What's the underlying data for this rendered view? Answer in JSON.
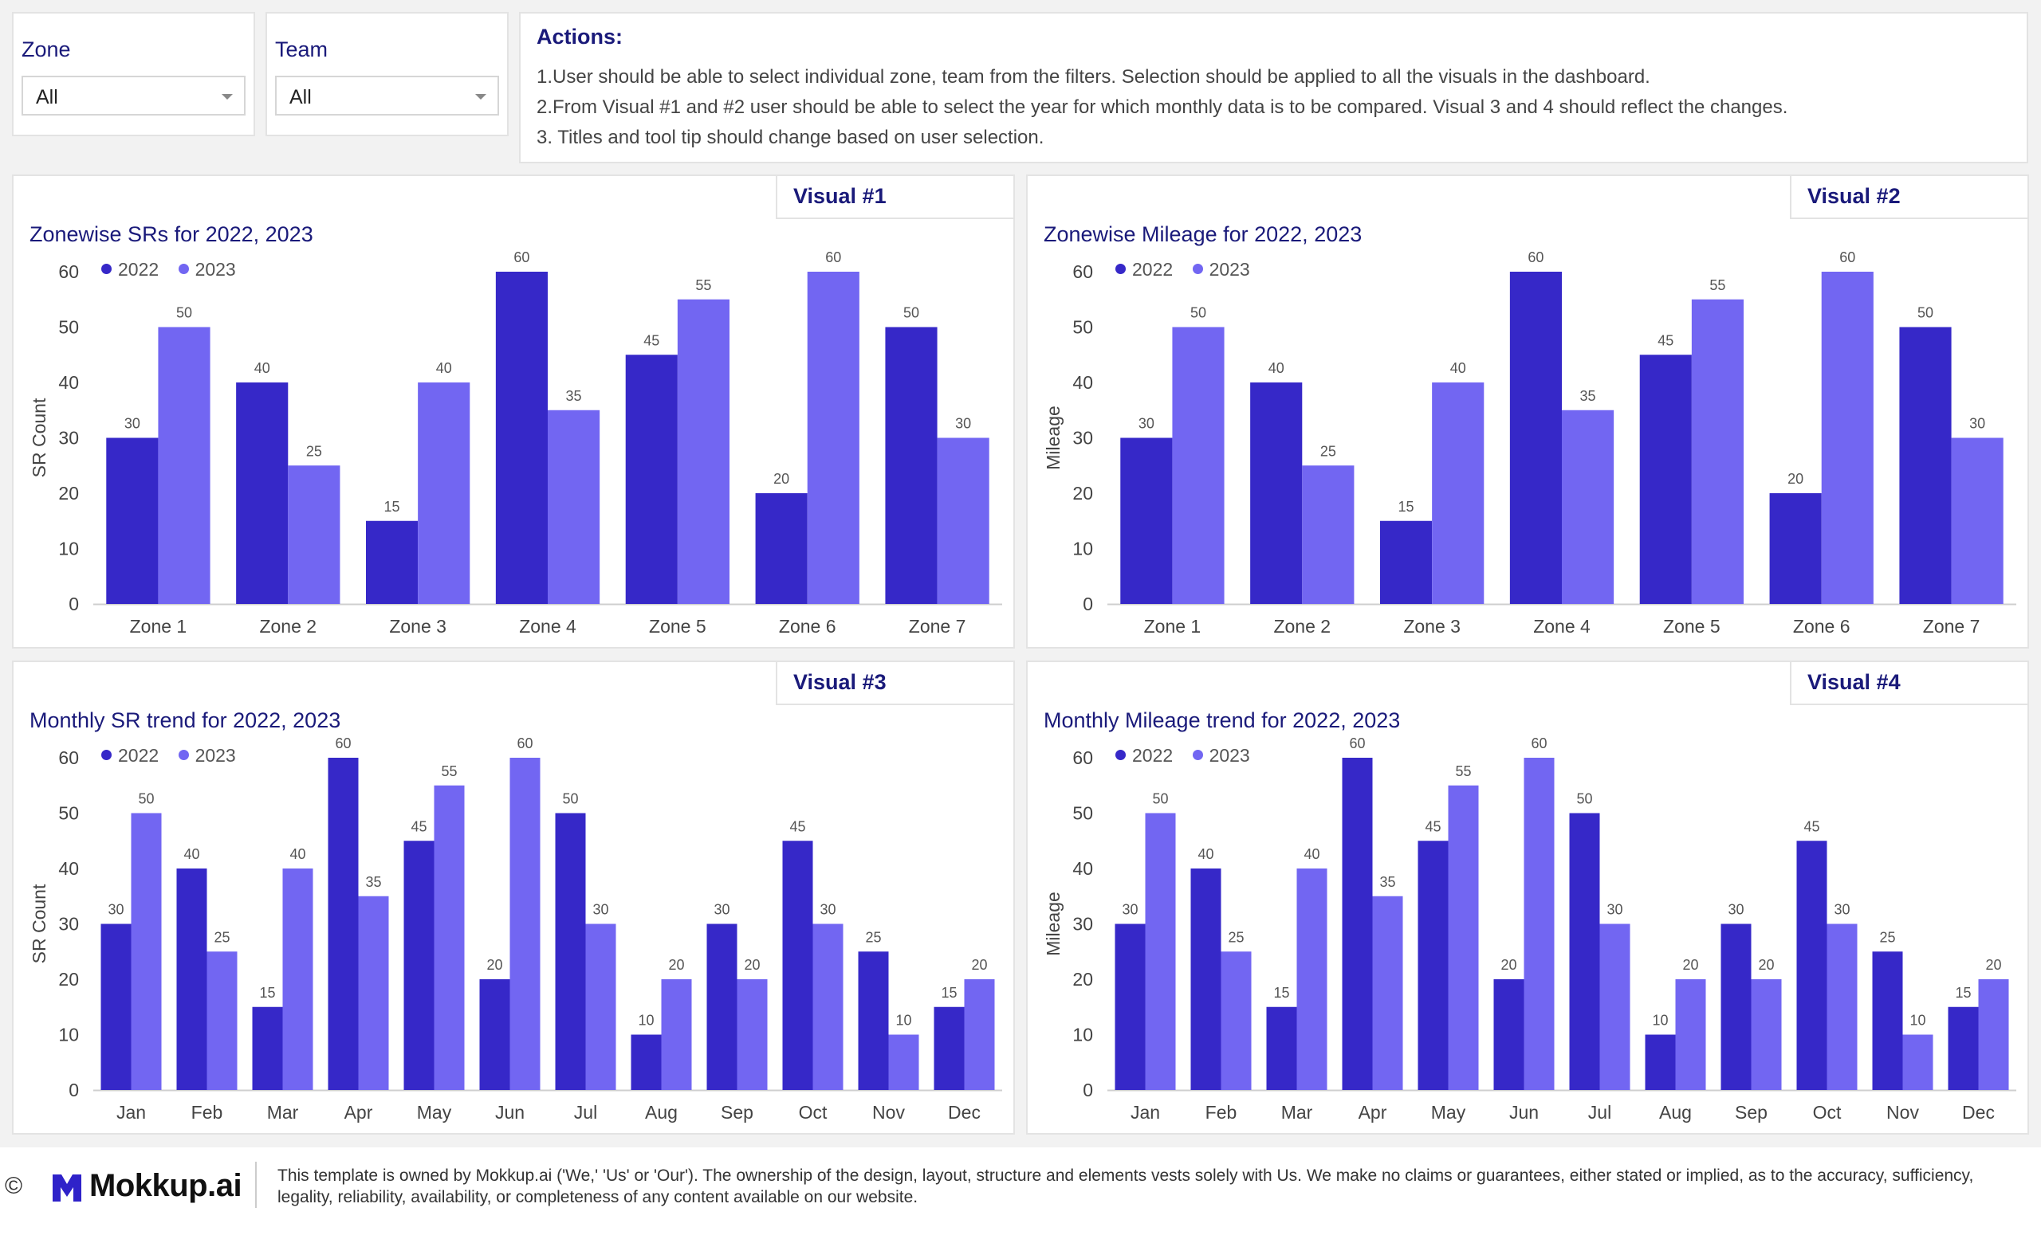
{
  "colors": {
    "y2022": "#3628c8",
    "y2023": "#7266f2",
    "title": "#1a1a7a"
  },
  "filters": [
    {
      "label": "Zone",
      "value": "All"
    },
    {
      "label": "Team",
      "value": "All"
    }
  ],
  "actions": {
    "title": "Actions:",
    "lines": [
      "1.User should be able to select individual zone, team from the filters. Selection should be applied to all the visuals in the dashboard.",
      "2.From Visual #1 and #2 user should be able to select the year for which monthly data is to be compared. Visual 3 and 4 should reflect the changes.",
      "3. Titles and tool tip should change based on user selection."
    ]
  },
  "charts": [
    {
      "tab": "Visual #1"
    },
    {
      "tab": "Visual #2"
    },
    {
      "tab": "Visual #3"
    },
    {
      "tab": "Visual #4"
    }
  ],
  "chart_data": [
    {
      "type": "bar",
      "title": "Zonewise SRs for 2022, 2023",
      "ylabel": "SR Count",
      "xlabel": "",
      "ylim": [
        0,
        60
      ],
      "yticks": [
        0,
        10,
        20,
        30,
        40,
        50,
        60
      ],
      "legend": "top-left",
      "grid": false,
      "categories": [
        "Zone 1",
        "Zone 2",
        "Zone 3",
        "Zone 4",
        "Zone 5",
        "Zone 6",
        "Zone 7"
      ],
      "series": [
        {
          "name": "2022",
          "values": [
            30,
            40,
            15,
            60,
            45,
            20,
            50
          ]
        },
        {
          "name": "2023",
          "values": [
            50,
            25,
            40,
            35,
            55,
            60,
            30
          ]
        }
      ]
    },
    {
      "type": "bar",
      "title": "Zonewise Mileage for 2022, 2023",
      "ylabel": "Mileage",
      "xlabel": "",
      "ylim": [
        0,
        60
      ],
      "yticks": [
        0,
        10,
        20,
        30,
        40,
        50,
        60
      ],
      "legend": "top-left",
      "grid": false,
      "categories": [
        "Zone 1",
        "Zone 2",
        "Zone 3",
        "Zone 4",
        "Zone 5",
        "Zone 6",
        "Zone 7"
      ],
      "series": [
        {
          "name": "2022",
          "values": [
            30,
            40,
            15,
            60,
            45,
            20,
            50
          ]
        },
        {
          "name": "2023",
          "values": [
            50,
            25,
            40,
            35,
            55,
            60,
            30
          ]
        }
      ]
    },
    {
      "type": "bar",
      "title": "Monthly SR trend for 2022, 2023",
      "ylabel": "SR Count",
      "xlabel": "",
      "ylim": [
        0,
        60
      ],
      "yticks": [
        0,
        10,
        20,
        30,
        40,
        50,
        60
      ],
      "legend": "top-left",
      "grid": false,
      "categories": [
        "Jan",
        "Feb",
        "Mar",
        "Apr",
        "May",
        "Jun",
        "Jul",
        "Aug",
        "Sep",
        "Oct",
        "Nov",
        "Dec"
      ],
      "series": [
        {
          "name": "2022",
          "values": [
            30,
            40,
            15,
            60,
            45,
            20,
            50,
            10,
            30,
            45,
            25,
            15
          ]
        },
        {
          "name": "2023",
          "values": [
            50,
            25,
            40,
            35,
            55,
            60,
            30,
            20,
            20,
            30,
            10,
            20
          ]
        }
      ]
    },
    {
      "type": "bar",
      "title": "Monthly Mileage trend for 2022, 2023",
      "ylabel": "Mileage",
      "xlabel": "",
      "ylim": [
        0,
        60
      ],
      "yticks": [
        0,
        10,
        20,
        30,
        40,
        50,
        60
      ],
      "legend": "top-left",
      "grid": false,
      "categories": [
        "Jan",
        "Feb",
        "Mar",
        "Apr",
        "May",
        "Jun",
        "Jul",
        "Aug",
        "Sep",
        "Oct",
        "Nov",
        "Dec"
      ],
      "series": [
        {
          "name": "2022",
          "values": [
            30,
            40,
            15,
            60,
            45,
            20,
            50,
            10,
            30,
            45,
            25,
            15
          ]
        },
        {
          "name": "2023",
          "values": [
            50,
            25,
            40,
            35,
            55,
            60,
            30,
            20,
            20,
            30,
            10,
            20
          ]
        }
      ]
    }
  ],
  "footer": {
    "copyright": "©",
    "logo_icon": "mokkup-logo-icon",
    "brand": "Mokkup.ai",
    "disclaimer": "This template is owned by Mokkup.ai ('We,' 'Us' or 'Our'). The ownership of the design, layout, structure and elements vests solely with Us. We make no claims or guarantees, either stated or implied, as to the accuracy, sufficiency, legality, reliability, availability, or completeness of any content available on our website."
  }
}
